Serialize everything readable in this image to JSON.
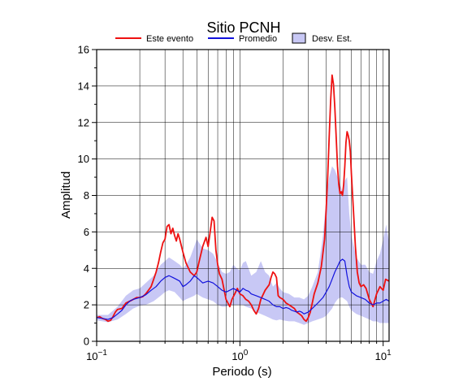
{
  "chart_data": {
    "type": "line",
    "title": "Sitio PCNH",
    "xlabel": "Periodo (s)",
    "ylabel": "Amplitud",
    "x_scale": "log",
    "xlim": [
      0.1,
      11
    ],
    "ylim": [
      0,
      16
    ],
    "grid": true,
    "legend_position": "top",
    "x_ticks": [
      {
        "value": 0.1,
        "base": "10",
        "exp": "−1"
      },
      {
        "value": 1,
        "base": "10",
        "exp": "0"
      },
      {
        "value": 10,
        "base": "10",
        "exp": "1"
      }
    ],
    "y_ticks": [
      0,
      2,
      4,
      6,
      8,
      10,
      12,
      14,
      16
    ],
    "legend": [
      {
        "label": "Este evento",
        "kind": "line",
        "color": "#ee1111"
      },
      {
        "label": "Promedio",
        "kind": "line",
        "color": "#1111dd"
      },
      {
        "label": "Desv. Est.",
        "kind": "band",
        "color": "#c8c8f5"
      }
    ],
    "series": [
      {
        "name": "Este evento",
        "color": "#ee1111",
        "points": [
          [
            0.1,
            1.3
          ],
          [
            0.105,
            1.35
          ],
          [
            0.11,
            1.25
          ],
          [
            0.115,
            1.2
          ],
          [
            0.12,
            1.1
          ],
          [
            0.125,
            1.15
          ],
          [
            0.13,
            1.35
          ],
          [
            0.135,
            1.6
          ],
          [
            0.14,
            1.75
          ],
          [
            0.15,
            1.8
          ],
          [
            0.16,
            2.1
          ],
          [
            0.17,
            2.2
          ],
          [
            0.18,
            2.3
          ],
          [
            0.19,
            2.4
          ],
          [
            0.2,
            2.4
          ],
          [
            0.21,
            2.45
          ],
          [
            0.22,
            2.6
          ],
          [
            0.23,
            2.8
          ],
          [
            0.24,
            3.0
          ],
          [
            0.25,
            3.4
          ],
          [
            0.26,
            3.8
          ],
          [
            0.27,
            4.3
          ],
          [
            0.28,
            4.9
          ],
          [
            0.29,
            5.4
          ],
          [
            0.3,
            5.6
          ],
          [
            0.31,
            6.3
          ],
          [
            0.32,
            6.4
          ],
          [
            0.33,
            5.9
          ],
          [
            0.34,
            6.2
          ],
          [
            0.35,
            5.8
          ],
          [
            0.36,
            5.5
          ],
          [
            0.37,
            5.9
          ],
          [
            0.38,
            5.6
          ],
          [
            0.4,
            4.9
          ],
          [
            0.42,
            4.3
          ],
          [
            0.45,
            3.8
          ],
          [
            0.48,
            3.6
          ],
          [
            0.5,
            3.8
          ],
          [
            0.52,
            4.4
          ],
          [
            0.55,
            5.2
          ],
          [
            0.58,
            5.7
          ],
          [
            0.6,
            5.2
          ],
          [
            0.62,
            6.0
          ],
          [
            0.64,
            6.8
          ],
          [
            0.66,
            6.6
          ],
          [
            0.68,
            5.0
          ],
          [
            0.7,
            4.2
          ],
          [
            0.72,
            3.7
          ],
          [
            0.75,
            3.4
          ],
          [
            0.8,
            2.3
          ],
          [
            0.85,
            1.9
          ],
          [
            0.88,
            2.3
          ],
          [
            0.92,
            2.6
          ],
          [
            0.96,
            2.9
          ],
          [
            1.0,
            2.6
          ],
          [
            1.05,
            2.5
          ],
          [
            1.1,
            2.3
          ],
          [
            1.15,
            2.2
          ],
          [
            1.2,
            2.0
          ],
          [
            1.25,
            1.7
          ],
          [
            1.3,
            1.5
          ],
          [
            1.35,
            1.8
          ],
          [
            1.4,
            2.3
          ],
          [
            1.5,
            2.8
          ],
          [
            1.6,
            3.1
          ],
          [
            1.65,
            3.5
          ],
          [
            1.7,
            3.8
          ],
          [
            1.75,
            3.7
          ],
          [
            1.8,
            3.5
          ],
          [
            1.85,
            2.5
          ],
          [
            1.9,
            2.4
          ],
          [
            2.0,
            2.3
          ],
          [
            2.1,
            2.1
          ],
          [
            2.2,
            2.0
          ],
          [
            2.3,
            1.9
          ],
          [
            2.4,
            1.8
          ],
          [
            2.5,
            1.6
          ],
          [
            2.6,
            1.5
          ],
          [
            2.7,
            1.4
          ],
          [
            2.8,
            1.2
          ],
          [
            2.9,
            1.1
          ],
          [
            3.0,
            1.3
          ],
          [
            3.1,
            1.6
          ],
          [
            3.2,
            2.1
          ],
          [
            3.3,
            2.6
          ],
          [
            3.5,
            3.2
          ],
          [
            3.7,
            4.1
          ],
          [
            3.9,
            5.6
          ],
          [
            4.0,
            7.2
          ],
          [
            4.1,
            9.0
          ],
          [
            4.2,
            11.2
          ],
          [
            4.3,
            13.2
          ],
          [
            4.4,
            14.6
          ],
          [
            4.5,
            14.1
          ],
          [
            4.6,
            12.8
          ],
          [
            4.7,
            11.2
          ],
          [
            4.8,
            9.6
          ],
          [
            4.9,
            8.6
          ],
          [
            5.0,
            8.1
          ],
          [
            5.1,
            8.2
          ],
          [
            5.2,
            8.0
          ],
          [
            5.3,
            8.6
          ],
          [
            5.4,
            9.6
          ],
          [
            5.5,
            10.9
          ],
          [
            5.6,
            11.5
          ],
          [
            5.7,
            11.3
          ],
          [
            5.8,
            11.0
          ],
          [
            5.9,
            10.4
          ],
          [
            6.0,
            9.2
          ],
          [
            6.2,
            7.2
          ],
          [
            6.4,
            5.2
          ],
          [
            6.6,
            3.8
          ],
          [
            6.8,
            3.2
          ],
          [
            7.0,
            3.0
          ],
          [
            7.3,
            3.1
          ],
          [
            7.6,
            2.9
          ],
          [
            8.0,
            2.3
          ],
          [
            8.5,
            1.9
          ],
          [
            9.0,
            2.6
          ],
          [
            9.5,
            3.0
          ],
          [
            10.0,
            2.8
          ],
          [
            10.4,
            3.4
          ],
          [
            11.0,
            3.3
          ]
        ]
      },
      {
        "name": "Promedio",
        "color": "#1111dd",
        "points": [
          [
            0.1,
            1.3
          ],
          [
            0.11,
            1.25
          ],
          [
            0.12,
            1.2
          ],
          [
            0.13,
            1.3
          ],
          [
            0.14,
            1.5
          ],
          [
            0.15,
            1.7
          ],
          [
            0.16,
            2.0
          ],
          [
            0.17,
            2.2
          ],
          [
            0.18,
            2.3
          ],
          [
            0.19,
            2.35
          ],
          [
            0.2,
            2.4
          ],
          [
            0.22,
            2.55
          ],
          [
            0.24,
            2.8
          ],
          [
            0.26,
            3.0
          ],
          [
            0.28,
            3.3
          ],
          [
            0.3,
            3.5
          ],
          [
            0.32,
            3.6
          ],
          [
            0.34,
            3.5
          ],
          [
            0.36,
            3.4
          ],
          [
            0.38,
            3.3
          ],
          [
            0.4,
            3.0
          ],
          [
            0.42,
            3.1
          ],
          [
            0.45,
            3.3
          ],
          [
            0.48,
            3.6
          ],
          [
            0.5,
            3.5
          ],
          [
            0.55,
            3.2
          ],
          [
            0.6,
            3.3
          ],
          [
            0.65,
            3.2
          ],
          [
            0.7,
            3.0
          ],
          [
            0.75,
            2.8
          ],
          [
            0.8,
            2.7
          ],
          [
            0.85,
            2.8
          ],
          [
            0.9,
            2.9
          ],
          [
            0.95,
            2.8
          ],
          [
            1.0,
            2.7
          ],
          [
            1.05,
            2.9
          ],
          [
            1.1,
            2.8
          ],
          [
            1.15,
            2.75
          ],
          [
            1.2,
            2.6
          ],
          [
            1.3,
            2.5
          ],
          [
            1.4,
            2.4
          ],
          [
            1.5,
            2.3
          ],
          [
            1.6,
            2.2
          ],
          [
            1.7,
            2.0
          ],
          [
            1.8,
            1.9
          ],
          [
            1.9,
            1.9
          ],
          [
            2.0,
            1.8
          ],
          [
            2.1,
            1.85
          ],
          [
            2.2,
            1.8
          ],
          [
            2.3,
            1.7
          ],
          [
            2.4,
            1.65
          ],
          [
            2.5,
            1.6
          ],
          [
            2.6,
            1.65
          ],
          [
            2.7,
            1.6
          ],
          [
            2.8,
            1.5
          ],
          [
            3.0,
            1.6
          ],
          [
            3.2,
            1.8
          ],
          [
            3.5,
            2.1
          ],
          [
            3.8,
            2.4
          ],
          [
            4.0,
            2.7
          ],
          [
            4.2,
            3.0
          ],
          [
            4.4,
            3.4
          ],
          [
            4.6,
            3.8
          ],
          [
            4.8,
            4.1
          ],
          [
            5.0,
            4.4
          ],
          [
            5.2,
            4.5
          ],
          [
            5.4,
            4.4
          ],
          [
            5.6,
            3.6
          ],
          [
            5.8,
            3.0
          ],
          [
            6.0,
            2.7
          ],
          [
            6.5,
            2.5
          ],
          [
            7.0,
            2.4
          ],
          [
            7.5,
            2.3
          ],
          [
            8.0,
            2.1
          ],
          [
            8.5,
            2.0
          ],
          [
            9.0,
            2.1
          ],
          [
            9.5,
            2.1
          ],
          [
            10.0,
            2.2
          ],
          [
            10.5,
            2.3
          ],
          [
            11.0,
            2.2
          ]
        ]
      }
    ],
    "band": {
      "name": "Desv. Est.",
      "color": "#c8c8f5",
      "points": [
        [
          0.1,
          1.15,
          1.45
        ],
        [
          0.12,
          1.05,
          1.45
        ],
        [
          0.14,
          1.2,
          1.9
        ],
        [
          0.16,
          1.5,
          2.5
        ],
        [
          0.18,
          1.8,
          2.8
        ],
        [
          0.2,
          1.95,
          2.9
        ],
        [
          0.22,
          2.0,
          3.2
        ],
        [
          0.25,
          2.2,
          3.6
        ],
        [
          0.28,
          2.5,
          4.2
        ],
        [
          0.3,
          2.7,
          4.4
        ],
        [
          0.32,
          2.8,
          4.6
        ],
        [
          0.35,
          2.7,
          4.4
        ],
        [
          0.38,
          2.4,
          4.2
        ],
        [
          0.4,
          2.2,
          4.0
        ],
        [
          0.42,
          2.3,
          4.2
        ],
        [
          0.45,
          2.4,
          4.6
        ],
        [
          0.48,
          2.5,
          5.2
        ],
        [
          0.5,
          2.6,
          5.6
        ],
        [
          0.55,
          2.4,
          5.1
        ],
        [
          0.6,
          2.3,
          5.0
        ],
        [
          0.65,
          2.2,
          4.8
        ],
        [
          0.7,
          2.0,
          4.3
        ],
        [
          0.75,
          1.9,
          3.8
        ],
        [
          0.8,
          1.9,
          3.7
        ],
        [
          0.85,
          2.0,
          3.8
        ],
        [
          0.9,
          2.0,
          4.2
        ],
        [
          0.95,
          2.0,
          4.0
        ],
        [
          1.0,
          2.0,
          3.9
        ],
        [
          1.05,
          2.0,
          4.3
        ],
        [
          1.1,
          1.9,
          4.4
        ],
        [
          1.2,
          1.8,
          3.6
        ],
        [
          1.3,
          1.6,
          3.8
        ],
        [
          1.4,
          1.5,
          4.4
        ],
        [
          1.5,
          1.4,
          3.8
        ],
        [
          1.6,
          1.3,
          3.6
        ],
        [
          1.7,
          1.2,
          3.0
        ],
        [
          1.8,
          1.15,
          3.2
        ],
        [
          1.9,
          1.2,
          2.9
        ],
        [
          2.0,
          1.15,
          2.7
        ],
        [
          2.2,
          1.1,
          2.6
        ],
        [
          2.4,
          1.1,
          2.4
        ],
        [
          2.6,
          1.0,
          2.4
        ],
        [
          2.8,
          0.9,
          2.3
        ],
        [
          3.0,
          1.0,
          2.5
        ],
        [
          3.2,
          1.1,
          3.0
        ],
        [
          3.5,
          1.2,
          3.8
        ],
        [
          3.8,
          1.3,
          5.8
        ],
        [
          4.0,
          1.4,
          7.8
        ],
        [
          4.2,
          1.6,
          9.0
        ],
        [
          4.4,
          1.8,
          9.6
        ],
        [
          4.6,
          2.1,
          9.4
        ],
        [
          4.8,
          2.3,
          9.0
        ],
        [
          5.0,
          2.4,
          8.6
        ],
        [
          5.2,
          2.4,
          8.2
        ],
        [
          5.4,
          2.3,
          8.8
        ],
        [
          5.6,
          2.2,
          9.0
        ],
        [
          5.8,
          1.9,
          7.0
        ],
        [
          6.0,
          1.7,
          5.8
        ],
        [
          6.5,
          1.5,
          4.6
        ],
        [
          7.0,
          1.4,
          4.2
        ],
        [
          7.5,
          1.3,
          4.2
        ],
        [
          8.0,
          1.2,
          3.8
        ],
        [
          8.5,
          1.1,
          3.7
        ],
        [
          9.0,
          1.1,
          4.4
        ],
        [
          9.5,
          1.0,
          4.8
        ],
        [
          10.0,
          1.0,
          5.6
        ],
        [
          10.5,
          1.0,
          6.4
        ],
        [
          11.0,
          1.0,
          5.4
        ]
      ]
    }
  }
}
